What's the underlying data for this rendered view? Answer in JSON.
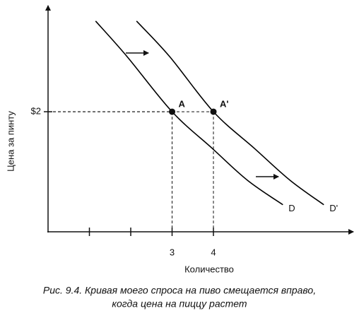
{
  "chart_data": {
    "type": "line",
    "x_label": "Количество",
    "y_label": "Цена за пинту",
    "xlim": [
      0,
      7.35
    ],
    "ylim": [
      0,
      3.72
    ],
    "xticks": [
      3,
      4
    ],
    "minor_xticks": [
      1,
      2
    ],
    "yticks": [
      {
        "value": 2,
        "label": "$2"
      }
    ],
    "series": [
      {
        "name": "D",
        "color": "#000000",
        "x": [
          1.15,
          1.91,
          3,
          3.97,
          4.82,
          5.68
        ],
        "values": [
          3.51,
          2.92,
          2,
          1.39,
          0.86,
          0.45
        ]
      },
      {
        "name": "D'",
        "color": "#000000",
        "x": [
          2.14,
          2.94,
          4,
          4.99,
          5.85,
          6.67
        ],
        "values": [
          3.51,
          2.92,
          2,
          1.39,
          0.86,
          0.45
        ]
      }
    ],
    "points": [
      {
        "label": "A",
        "x": 3,
        "y": 2
      },
      {
        "label": "A'",
        "x": 4,
        "y": 2
      }
    ],
    "caption": [
      "Рис. 9.4. Кривая моего спроса на пиво смещается вправо,",
      "когда цена на пиццу растет"
    ]
  }
}
